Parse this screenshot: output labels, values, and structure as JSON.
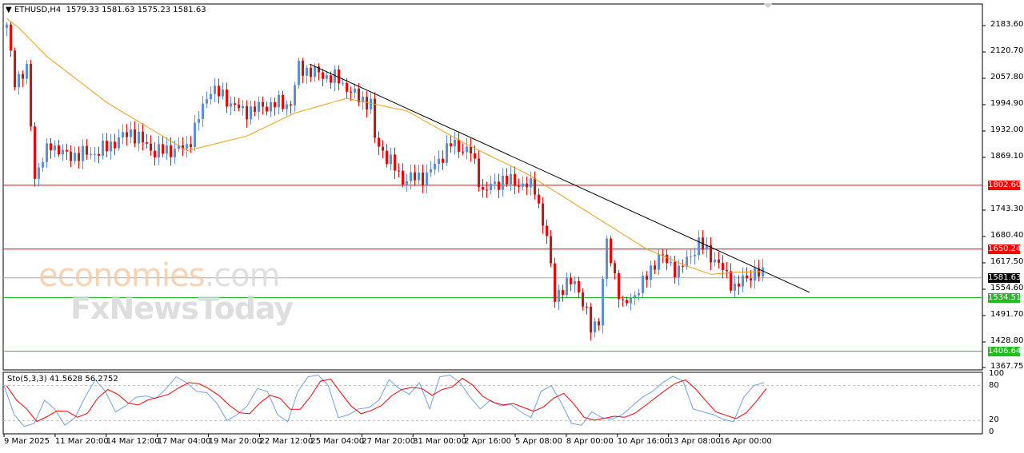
{
  "header": {
    "symbol": "ETHUSD,H4",
    "ohlc": "1579.33 1581.63 1575.23 1581.63"
  },
  "watermark": {
    "line1": "economies",
    "line1_suffix": ".com",
    "line2": "FxNewsToday"
  },
  "colors": {
    "up": "#5b8ee6",
    "down": "#ff0000",
    "ma": "#f39c12",
    "resistance": "#ff0000",
    "support": "#22bb22",
    "current": "#000000",
    "stoch_k": "#6fa0ee",
    "stoch_d": "#ff0000"
  },
  "chart_data": {
    "type": "candlestick",
    "price_axis": {
      "min": 1367.75,
      "max": 2183.6,
      "ticks": [
        "2183.60",
        "2120.70",
        "2057.80",
        "1994.90",
        "1932.00",
        "1869.10",
        "1743.30",
        "1680.40",
        "1617.50",
        "1554.60",
        "1491.70",
        "1428.80",
        "1367.75"
      ]
    },
    "time_axis": [
      "9 Mar 2025",
      "11 Mar 20:00",
      "14 Mar 12:00",
      "17 Mar 04:00",
      "19 Mar 20:00",
      "22 Mar 12:00",
      "25 Mar 04:00",
      "27 Mar 20:00",
      "31 Mar 00:00",
      "2 Apr 16:00",
      "5 Apr 08:00",
      "8 Apr 00:00",
      "10 Apr 16:00",
      "13 Apr 08:00",
      "16 Apr 00:00"
    ],
    "bars_count": 190,
    "close_keypoints": [
      [
        0,
        2178
      ],
      [
        2,
        2054
      ],
      [
        5,
        2073
      ],
      [
        7,
        1825
      ],
      [
        11,
        1901
      ],
      [
        15,
        1872
      ],
      [
        23,
        1882
      ],
      [
        31,
        1930
      ],
      [
        37,
        1882
      ],
      [
        45,
        1892
      ],
      [
        51,
        2035
      ],
      [
        59,
        1978
      ],
      [
        67,
        1997
      ],
      [
        71,
        1997
      ],
      [
        73,
        2083
      ],
      [
        83,
        2054
      ],
      [
        87,
        2016
      ],
      [
        91,
        1997
      ],
      [
        92,
        1911
      ],
      [
        99,
        1816
      ],
      [
        105,
        1825
      ],
      [
        111,
        1901
      ],
      [
        116,
        1882
      ],
      [
        119,
        1787
      ],
      [
        124,
        1816
      ],
      [
        132,
        1797
      ],
      [
        135,
        1673
      ],
      [
        137,
        1539
      ],
      [
        142,
        1578
      ],
      [
        146,
        1463
      ],
      [
        148,
        1482
      ],
      [
        150,
        1664
      ],
      [
        154,
        1511
      ],
      [
        159,
        1568
      ],
      [
        163,
        1635
      ],
      [
        168,
        1597
      ],
      [
        173,
        1664
      ],
      [
        177,
        1626
      ],
      [
        182,
        1559
      ],
      [
        187,
        1597
      ],
      [
        190,
        1581.63
      ]
    ],
    "ma_keypoints": [
      [
        0,
        2200
      ],
      [
        3,
        2178
      ],
      [
        10,
        2110
      ],
      [
        25,
        2000
      ],
      [
        45,
        1885
      ],
      [
        60,
        1920
      ],
      [
        72,
        1975
      ],
      [
        85,
        2010
      ],
      [
        100,
        1980
      ],
      [
        115,
        1900
      ],
      [
        130,
        1830
      ],
      [
        140,
        1770
      ],
      [
        150,
        1710
      ],
      [
        160,
        1650
      ],
      [
        170,
        1610
      ],
      [
        176,
        1590
      ],
      [
        182,
        1595
      ],
      [
        190,
        1597
      ]
    ],
    "trendline": {
      "from": [
        76,
        2092
      ],
      "to": [
        201,
        1547
      ]
    },
    "levels": [
      {
        "price": 1802.6,
        "label": "1802.60",
        "kind": "resistance"
      },
      {
        "price": 1650.24,
        "label": "1650.24",
        "kind": "resistance"
      },
      {
        "price": 1581.63,
        "label": "1581.63",
        "kind": "current"
      },
      {
        "price": 1534.51,
        "label": "1534.51",
        "kind": "support"
      },
      {
        "price": 1406.64,
        "label": "1406.64",
        "kind": "support"
      }
    ],
    "stochastic": {
      "label": "Sto(5,3,3) 41.5628 56.2752",
      "levels": [
        "100",
        "80",
        "20",
        "0"
      ],
      "k": [
        80,
        30,
        10,
        15,
        55,
        40,
        12,
        25,
        60,
        90,
        70,
        35,
        45,
        60,
        62,
        58,
        75,
        95,
        85,
        70,
        68,
        50,
        20,
        30,
        45,
        75,
        70,
        30,
        18,
        70,
        95,
        98,
        80,
        25,
        30,
        40,
        42,
        55,
        90,
        75,
        65,
        85,
        40,
        95,
        98,
        85,
        60,
        40,
        55,
        45,
        48,
        35,
        25,
        70,
        80,
        50,
        15,
        12,
        35,
        25,
        22,
        30,
        45,
        60,
        70,
        85,
        96,
        88,
        40,
        35,
        30,
        22,
        18,
        60,
        80,
        85
      ]
    }
  }
}
